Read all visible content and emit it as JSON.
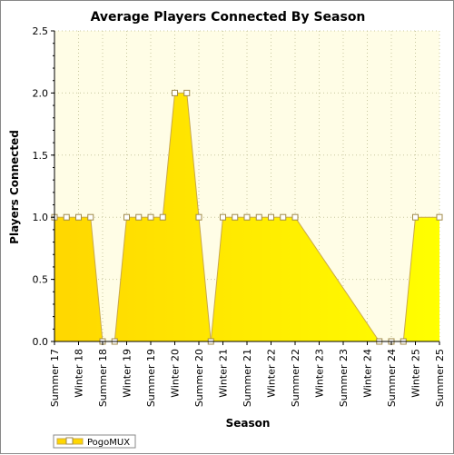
{
  "chart_data": {
    "type": "area",
    "title": "Average Players Connected By Season",
    "xlabel": "Season",
    "ylabel": "Players Connected",
    "ylim": [
      0,
      2.5
    ],
    "yticks": [
      "0.0",
      "0.5",
      "1.0",
      "1.5",
      "2.0",
      "2.5"
    ],
    "xtick_labels": [
      "Summer 17",
      "Winter 18",
      "Summer 18",
      "Winter 19",
      "Summer 19",
      "Winter 20",
      "Summer 20",
      "Winter 21",
      "Summer 21",
      "Winter 22",
      "Summer 22",
      "Winter 23",
      "Summer 23",
      "Winter 24",
      "Summer 24",
      "Winter 25",
      "Summer 25"
    ],
    "grid": true,
    "legend_position": "bottom-left",
    "series": [
      {
        "name": "PogoMUX",
        "x": [
          0,
          0.5,
          1,
          1.5,
          2,
          2.5,
          3,
          3.5,
          4,
          4.5,
          5,
          5.5,
          6,
          6.5,
          7,
          7.5,
          8,
          8.5,
          9,
          9.5,
          10,
          13.5,
          14,
          14.5,
          15,
          16
        ],
        "values": [
          1,
          1,
          1,
          1,
          0,
          0,
          1,
          1,
          1,
          1,
          2,
          2,
          1,
          0,
          1,
          1,
          1,
          1,
          1,
          1,
          1,
          0,
          0,
          0,
          1,
          1
        ]
      }
    ],
    "colors": {
      "plot_background": "#fffde6",
      "fill_light": "#ffff00",
      "fill_dark": "#ffd700",
      "line": "#c9a84a",
      "marker_fill": "#ffffff",
      "marker_stroke": "#a08a4a",
      "grid": "#c8c8a0",
      "axis": "#000000"
    }
  }
}
